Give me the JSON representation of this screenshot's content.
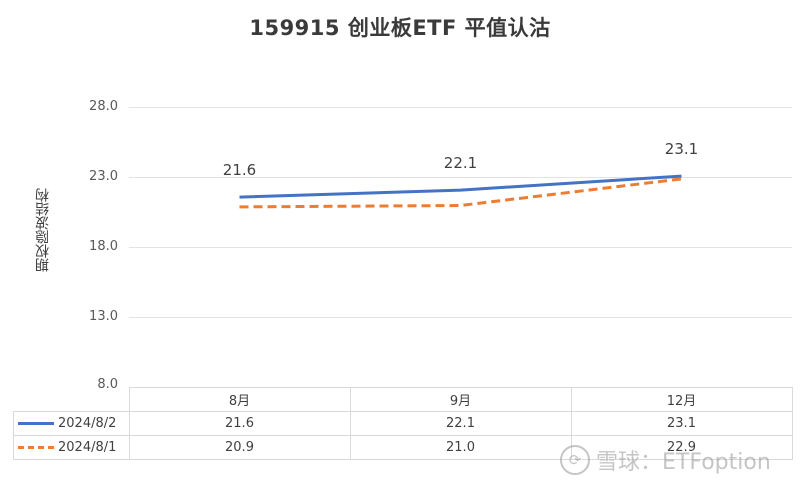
{
  "chart_data": {
    "type": "line",
    "title": "159915 创业板ETF 平值认沽",
    "xlabel": "",
    "ylabel": "期权隐波结构",
    "categories": [
      "8月",
      "9月",
      "12月"
    ],
    "series": [
      {
        "name": "2024/8/2",
        "values": [
          21.6,
          22.1,
          23.1
        ],
        "color": "#4472C4",
        "style": "solid",
        "data_labels": true
      },
      {
        "name": "2024/8/1",
        "values": [
          20.9,
          21.0,
          22.9
        ],
        "color": "#ED7D31",
        "style": "dashed",
        "data_labels": false
      }
    ],
    "ylim": [
      8.0,
      28.0
    ],
    "yticks": [
      "28.0",
      "23.0",
      "18.0",
      "13.0",
      "8.0"
    ],
    "grid": true,
    "legend_position": "data-table",
    "data_table": true
  },
  "labels": {
    "title": "159915 创业板ETF 平值认沽",
    "ylabel": "期权隐波结构",
    "yticks": [
      "28.0",
      "23.0",
      "18.0",
      "13.0",
      "8.0"
    ],
    "categories": [
      "8月",
      "9月",
      "12月"
    ],
    "series0_name": "2024/8/2",
    "series1_name": "2024/8/1",
    "series0_values": [
      "21.6",
      "22.1",
      "23.1"
    ],
    "series1_values": [
      "20.9",
      "21.0",
      "22.9"
    ],
    "watermark": "雪球：ETFoption"
  }
}
